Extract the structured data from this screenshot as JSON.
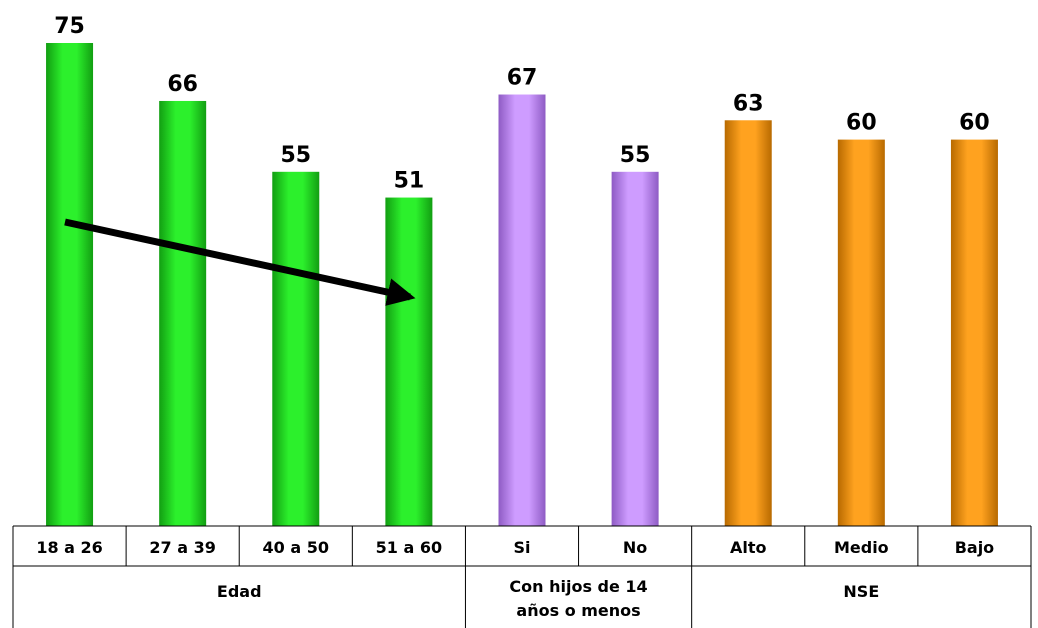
{
  "chart_data": {
    "type": "bar",
    "categories": [
      "18 a 26",
      "27 a 39",
      "40 a 50",
      "51 a 60",
      "Si",
      "No",
      "Alto",
      "Medio",
      "Bajo"
    ],
    "values": [
      75,
      66,
      55,
      51,
      67,
      55,
      63,
      60,
      60
    ],
    "value_labels": [
      "75",
      "66",
      "55",
      "51",
      "67",
      "55",
      "63",
      "60",
      "60"
    ],
    "groups": [
      {
        "label_lines": [
          "Edad"
        ],
        "categories": [
          "18 a 26",
          "27 a 39",
          "40 a 50",
          "51 a 60"
        ],
        "color": "#1FD81F"
      },
      {
        "label_lines": [
          "Con hijos de 14",
          "años o menos"
        ],
        "categories": [
          "Si",
          "No"
        ],
        "color": "#C28CF5"
      },
      {
        "label_lines": [
          "NSE"
        ],
        "categories": [
          "Alto",
          "Medio",
          "Bajo"
        ],
        "color": "#FF9900"
      }
    ],
    "ylim": [
      0,
      75
    ],
    "grid": false,
    "legend": "none",
    "annotation": "arrow-trend-down-across-edad"
  }
}
